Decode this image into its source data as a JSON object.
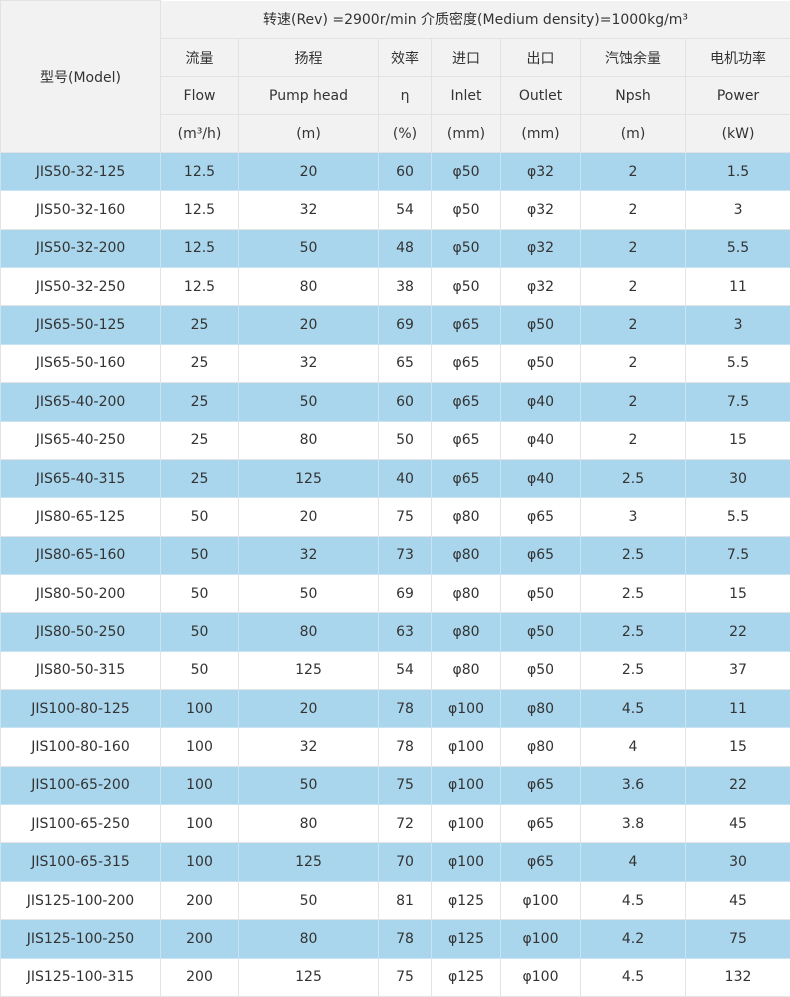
{
  "header": {
    "model": "型号(Model)",
    "conditions": "转速(Rev) =2900r/min  介质密度(Medium density)=1000kg/m³",
    "columns": [
      {
        "zh": "流量",
        "en": "Flow",
        "unit": "(m³/h)"
      },
      {
        "zh": "扬程",
        "en": "Pump head",
        "unit": "(m)"
      },
      {
        "zh": "效率",
        "en": "η",
        "unit": "(%)"
      },
      {
        "zh": "进口",
        "en": "Inlet",
        "unit": "(mm)"
      },
      {
        "zh": "出口",
        "en": "Outlet",
        "unit": "(mm)"
      },
      {
        "zh": "汽蚀余量",
        "en": "Npsh",
        "unit": "(m)"
      },
      {
        "zh": "电机功率",
        "en": "Power",
        "unit": "(kW)"
      }
    ]
  },
  "table": {
    "rows": [
      [
        "JIS50-32-125",
        "12.5",
        "20",
        "60",
        "φ50",
        "φ32",
        "2",
        "1.5"
      ],
      [
        "JIS50-32-160",
        "12.5",
        "32",
        "54",
        "φ50",
        "φ32",
        "2",
        "3"
      ],
      [
        "JIS50-32-200",
        "12.5",
        "50",
        "48",
        "φ50",
        "φ32",
        "2",
        "5.5"
      ],
      [
        "JIS50-32-250",
        "12.5",
        "80",
        "38",
        "φ50",
        "φ32",
        "2",
        "11"
      ],
      [
        "JIS65-50-125",
        "25",
        "20",
        "69",
        "φ65",
        "φ50",
        "2",
        "3"
      ],
      [
        "JIS65-50-160",
        "25",
        "32",
        "65",
        "φ65",
        "φ50",
        "2",
        "5.5"
      ],
      [
        "JIS65-40-200",
        "25",
        "50",
        "60",
        "φ65",
        "φ40",
        "2",
        "7.5"
      ],
      [
        "JIS65-40-250",
        "25",
        "80",
        "50",
        "φ65",
        "φ40",
        "2",
        "15"
      ],
      [
        "JIS65-40-315",
        "25",
        "125",
        "40",
        "φ65",
        "φ40",
        "2.5",
        "30"
      ],
      [
        "JIS80-65-125",
        "50",
        "20",
        "75",
        "φ80",
        "φ65",
        "3",
        "5.5"
      ],
      [
        "JIS80-65-160",
        "50",
        "32",
        "73",
        "φ80",
        "φ65",
        "2.5",
        "7.5"
      ],
      [
        "JIS80-50-200",
        "50",
        "50",
        "69",
        "φ80",
        "φ50",
        "2.5",
        "15"
      ],
      [
        "JIS80-50-250",
        "50",
        "80",
        "63",
        "φ80",
        "φ50",
        "2.5",
        "22"
      ],
      [
        "JIS80-50-315",
        "50",
        "125",
        "54",
        "φ80",
        "φ50",
        "2.5",
        "37"
      ],
      [
        "JIS100-80-125",
        "100",
        "20",
        "78",
        "φ100",
        "φ80",
        "4.5",
        "11"
      ],
      [
        "JIS100-80-160",
        "100",
        "32",
        "78",
        "φ100",
        "φ80",
        "4",
        "15"
      ],
      [
        "JIS100-65-200",
        "100",
        "50",
        "75",
        "φ100",
        "φ65",
        "3.6",
        "22"
      ],
      [
        "JIS100-65-250",
        "100",
        "80",
        "72",
        "φ100",
        "φ65",
        "3.8",
        "45"
      ],
      [
        "JIS100-65-315",
        "100",
        "125",
        "70",
        "φ100",
        "φ65",
        "4",
        "30"
      ],
      [
        "JIS125-100-200",
        "200",
        "50",
        "81",
        "φ125",
        "φ100",
        "4.5",
        "45"
      ],
      [
        "JIS125-100-250",
        "200",
        "80",
        "78",
        "φ125",
        "φ100",
        "4.2",
        "75"
      ],
      [
        "JIS125-100-315",
        "200",
        "125",
        "75",
        "φ125",
        "φ100",
        "4.5",
        "132"
      ]
    ]
  }
}
